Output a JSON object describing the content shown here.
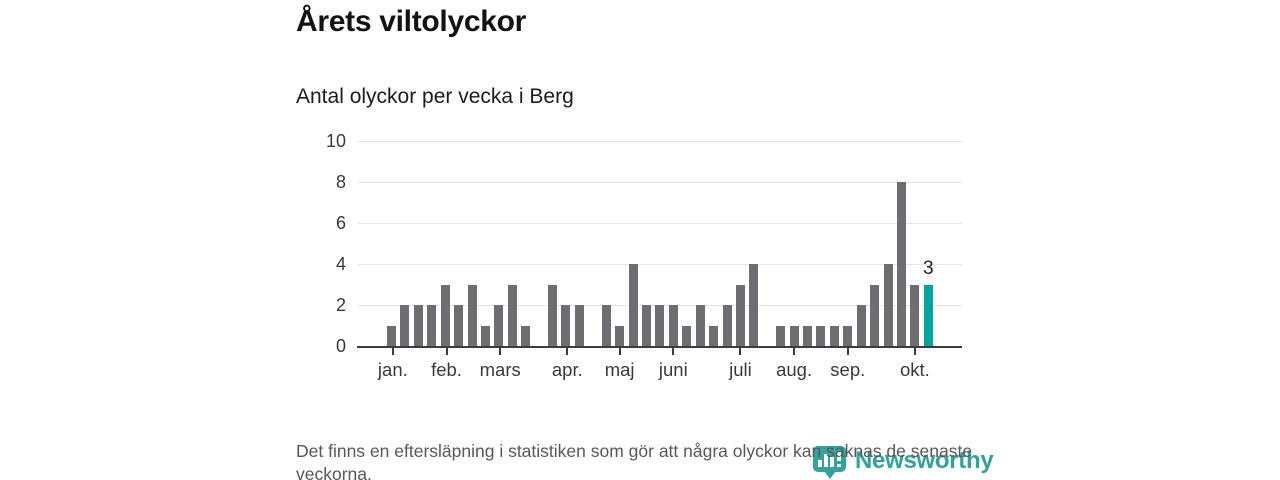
{
  "header": {
    "title": "Årets viltolyckor",
    "subtitle": "Antal olyckor per vecka i Berg"
  },
  "chart_data": {
    "type": "bar",
    "title": "Årets viltolyckor",
    "subtitle": "Antal olyckor per vecka i Berg",
    "x_unit": "vecka (weeks 1-41 of the year)",
    "values": [
      1,
      2,
      2,
      2,
      3,
      2,
      3,
      1,
      2,
      3,
      1,
      0,
      3,
      2,
      2,
      0,
      2,
      1,
      4,
      2,
      2,
      2,
      1,
      2,
      1,
      2,
      3,
      4,
      0,
      1,
      1,
      1,
      1,
      1,
      1,
      2,
      3,
      4,
      8,
      3,
      3
    ],
    "ylim": [
      0,
      10
    ],
    "y_ticks": [
      0,
      2,
      4,
      6,
      8,
      10
    ],
    "x_ticks": [
      {
        "label": "jan.",
        "week": 1.1
      },
      {
        "label": "feb.",
        "week": 5.1
      },
      {
        "label": "mars",
        "week": 9.1
      },
      {
        "label": "apr.",
        "week": 14.1
      },
      {
        "label": "maj",
        "week": 18
      },
      {
        "label": "juni",
        "week": 22
      },
      {
        "label": "juli",
        "week": 27
      },
      {
        "label": "aug.",
        "week": 31
      },
      {
        "label": "sep.",
        "week": 35
      },
      {
        "label": "okt.",
        "week": 40
      }
    ],
    "grid": true,
    "legend_position": "none",
    "bar_color": "#6E6E72",
    "highlight_bar": {
      "index": 41,
      "value": 3,
      "label": "3",
      "color": "#00A69C"
    }
  },
  "footer": {
    "note": "Det finns en eftersläpning i statistiken som gör att några olyckor kan saknas de senaste veckorna.",
    "brand": {
      "name": "Newsworthy",
      "color": "#33A19C"
    }
  }
}
